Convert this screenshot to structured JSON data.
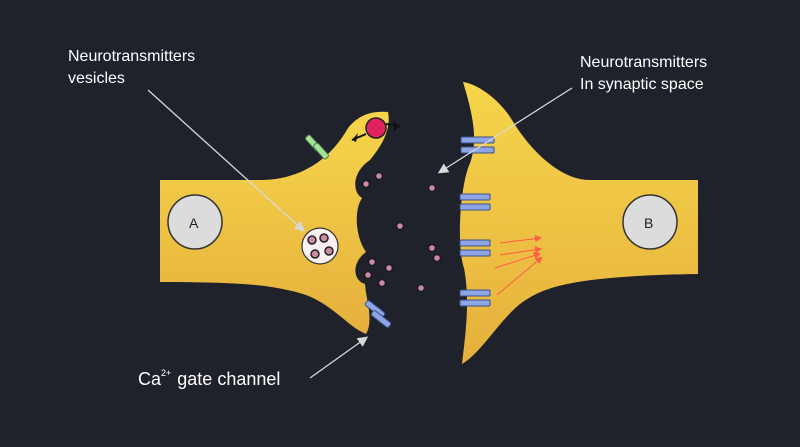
{
  "colors": {
    "background": "#1f212b",
    "neuron_fill_light": "#f6d54b",
    "neuron_fill_dark": "#e5b03c",
    "nucleus": "#dcdcdc",
    "vesicle": "#f8f0f2",
    "neurotransmitter": "#c98aa6",
    "receptor": "#8ea6e6",
    "channel_green": "#a6e29a",
    "pump_red": "#e0245e",
    "arrow_red": "#ff5a46",
    "pointer": "#d9d9d9"
  },
  "neuron_a": {
    "label": "A"
  },
  "neuron_b": {
    "label": "B"
  },
  "labels": {
    "vesicles": {
      "line1": "Neurotransmitters",
      "line2": "vesicles"
    },
    "synaptic": {
      "line1": "Neurotransmitters",
      "line2": "In synaptic space"
    },
    "ca_channel": {
      "base": "Ca",
      "superscript": "2+",
      "rest": " gate channel"
    }
  }
}
